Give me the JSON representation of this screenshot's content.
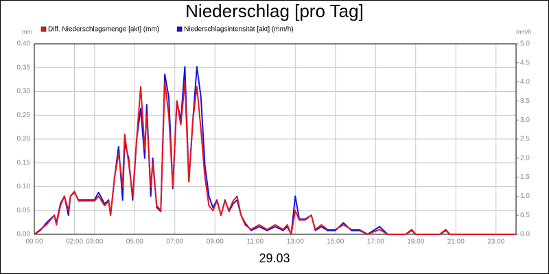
{
  "chart_data": {
    "type": "line",
    "title": "Niederschlag [pro Tag]",
    "xlabel": "29.03",
    "ylabel": "mm",
    "y2label": "mm/h",
    "x": [
      0,
      0.3,
      0.6,
      0.8,
      1.0,
      1.1,
      1.3,
      1.5,
      1.7,
      1.8,
      2.0,
      2.2,
      3.0,
      3.2,
      3.5,
      3.7,
      3.8,
      4.0,
      4.2,
      4.4,
      4.5,
      4.7,
      4.9,
      5.1,
      5.3,
      5.5,
      5.6,
      5.8,
      5.9,
      6.1,
      6.3,
      6.5,
      6.7,
      6.9,
      7.1,
      7.3,
      7.5,
      7.7,
      7.9,
      8.1,
      8.3,
      8.5,
      8.7,
      8.9,
      9.1,
      9.3,
      9.5,
      9.7,
      9.9,
      10.1,
      10.3,
      10.5,
      10.8,
      11.2,
      11.6,
      12.0,
      12.4,
      12.6,
      12.8,
      13.0,
      13.2,
      13.5,
      13.8,
      14.0,
      14.3,
      14.6,
      15.0,
      15.4,
      15.8,
      16.2,
      16.6,
      17.2,
      17.6,
      18.5,
      18.8,
      19.0,
      20.2,
      20.5,
      20.7,
      24
    ],
    "series": [
      {
        "name": "Diff. Niederschlagsmenge [akt] (mm)",
        "color": "#e8141c",
        "values": [
          0,
          0.01,
          0.02,
          0.03,
          0.04,
          0.02,
          0.06,
          0.08,
          0.05,
          0.08,
          0.09,
          0.07,
          0.07,
          0.08,
          0.06,
          0.07,
          0.04,
          0.12,
          0.17,
          0.1,
          0.21,
          0.15,
          0.08,
          0.2,
          0.31,
          0.18,
          0.25,
          0.1,
          0.15,
          0.06,
          0.05,
          0.32,
          0.25,
          0.1,
          0.28,
          0.23,
          0.32,
          0.11,
          0.24,
          0.31,
          0.22,
          0.12,
          0.06,
          0.05,
          0.07,
          0.04,
          0.07,
          0.05,
          0.07,
          0.08,
          0.04,
          0.02,
          0.01,
          0.02,
          0.01,
          0.02,
          0.01,
          0.02,
          0,
          0.05,
          0.03,
          0.03,
          0.04,
          0.01,
          0.02,
          0.01,
          0.01,
          0.02,
          0.01,
          0.01,
          0,
          0.01,
          0,
          0,
          0.01,
          0,
          0,
          0.01,
          0,
          0
        ]
      },
      {
        "name": "Niederschlagsintensität [akt] (mm/h)",
        "color": "#1414e0",
        "axis": "y2",
        "values": [
          0,
          0.1,
          0.3,
          0.4,
          0.5,
          0.3,
          0.8,
          1.0,
          0.5,
          1.0,
          1.1,
          0.9,
          0.9,
          1.1,
          0.8,
          0.9,
          0.5,
          1.5,
          2.3,
          0.9,
          2.4,
          2.0,
          0.9,
          2.5,
          3.3,
          2.0,
          3.4,
          1.0,
          2.0,
          0.7,
          0.6,
          4.2,
          3.6,
          1.2,
          3.5,
          3.0,
          4.4,
          1.4,
          3.0,
          4.4,
          3.6,
          1.8,
          1.0,
          0.7,
          0.9,
          0.5,
          0.9,
          0.6,
          0.8,
          0.9,
          0.5,
          0.3,
          0.1,
          0.2,
          0.1,
          0.2,
          0.1,
          0.2,
          0,
          1.0,
          0.4,
          0.4,
          0.5,
          0.1,
          0.2,
          0.1,
          0.1,
          0.3,
          0.1,
          0.1,
          0,
          0.2,
          0,
          0,
          0.1,
          0,
          0,
          0.1,
          0,
          0
        ]
      }
    ],
    "xlim": [
      0,
      24
    ],
    "xticks": [
      {
        "value": 0,
        "label": "00:00"
      },
      {
        "value": 2,
        "label": "02:00"
      },
      {
        "value": 3,
        "label": "03:00"
      },
      {
        "value": 5,
        "label": "05:00"
      },
      {
        "value": 7,
        "label": "07:00"
      },
      {
        "value": 9,
        "label": "09:00"
      },
      {
        "value": 11,
        "label": "11:00"
      },
      {
        "value": 13,
        "label": "13:00"
      },
      {
        "value": 15,
        "label": "15:00"
      },
      {
        "value": 17,
        "label": "17:00"
      },
      {
        "value": 19,
        "label": "19:00"
      },
      {
        "value": 21,
        "label": "21:00"
      },
      {
        "value": 23,
        "label": "23:00"
      }
    ],
    "ylim": [
      0,
      0.4
    ],
    "yticks": [
      {
        "value": 0,
        "label": "0.00"
      },
      {
        "value": 0.05,
        "label": "0.05"
      },
      {
        "value": 0.1,
        "label": "0.10"
      },
      {
        "value": 0.15,
        "label": "0.15"
      },
      {
        "value": 0.2,
        "label": "0.20"
      },
      {
        "value": 0.25,
        "label": "0.25"
      },
      {
        "value": 0.3,
        "label": "0.30"
      },
      {
        "value": 0.35,
        "label": "0.35"
      },
      {
        "value": 0.4,
        "label": "0.40"
      }
    ],
    "y2lim": [
      0,
      5
    ],
    "y2ticks": [
      {
        "value": 0,
        "label": "0.0"
      },
      0.5,
      {
        "value": 1,
        "label": "1.0"
      },
      1.5,
      {
        "value": 2,
        "label": "2.0"
      },
      2.5,
      {
        "value": 3,
        "label": "3.0"
      },
      3.5,
      {
        "value": 4,
        "label": "4.0"
      },
      4.5,
      {
        "value": 5,
        "label": "5.0"
      }
    ],
    "grid": true
  }
}
